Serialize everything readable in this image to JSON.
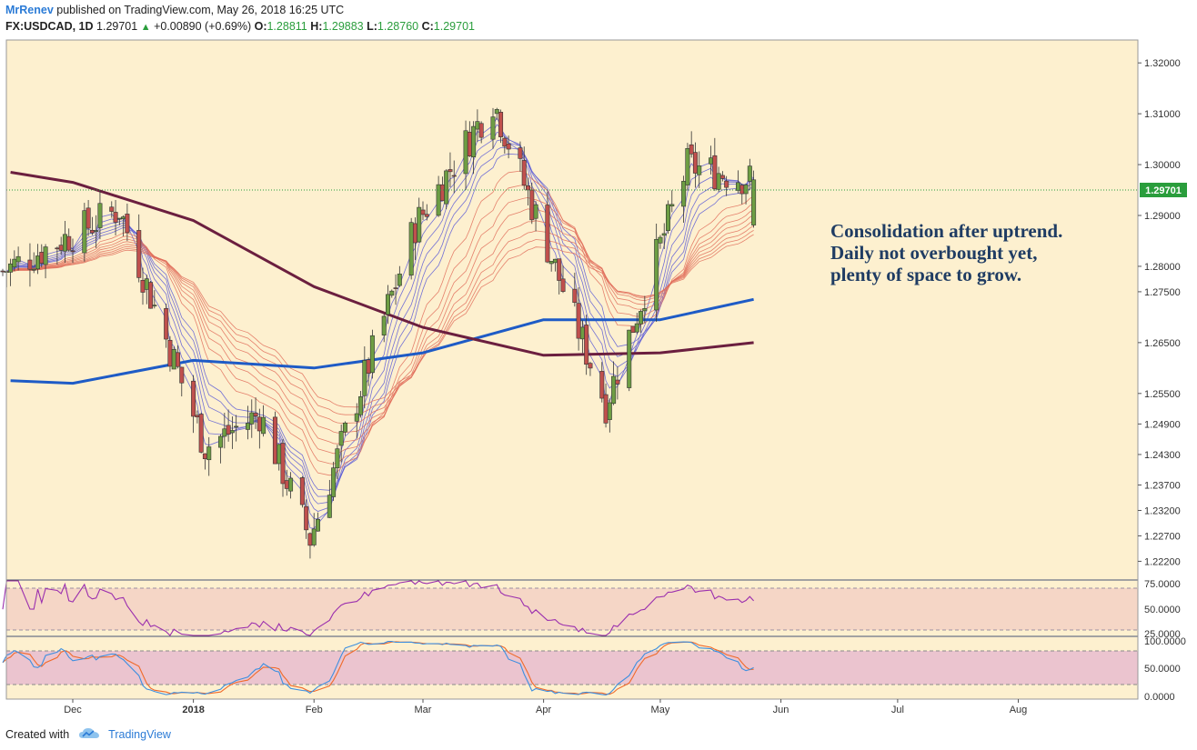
{
  "header": {
    "author": "MrRenev",
    "published": "published on TradingView.com, May 26, 2018 16:25 UTC",
    "symbol": "FX:USDCAD, 1D",
    "last": "1.29701",
    "change": "+0.00890 (+0.69%)",
    "o_label": "O:",
    "o": "1.28811",
    "h_label": "H:",
    "h": "1.29883",
    "l_label": "L:",
    "l": "1.28760",
    "c_label": "C:",
    "c": "1.29701"
  },
  "annotation": {
    "line1": "Consolidation after uptrend.",
    "line2": "Daily not overbought yet,",
    "line3": "plenty of space to grow."
  },
  "footer": {
    "created_with": "Created with",
    "brand": "TradingView"
  },
  "colors": {
    "background": "#fdf0cf",
    "up_candle": "#6e9e44",
    "down_candle": "#c0504d",
    "ma_fast": "#5b5bd6",
    "ma_slow": "#e06d5a",
    "sma_blue": "#1e5bc6",
    "sma_maroon": "#6b1f3f",
    "rsi_line": "#9b2fae",
    "stoch_k": "#3d8fe0",
    "stoch_d": "#f06a2a",
    "last_price_tag": "#2a9d3c"
  },
  "chart_data": [
    {
      "type": "candlestick",
      "symbol": "FX:USDCAD",
      "timeframe": "1D",
      "price_ticks": [
        "1.32000",
        "1.31000",
        "1.30000",
        "1.29000",
        "1.28000",
        "1.27500",
        "1.26500",
        "1.25500",
        "1.24900",
        "1.24300",
        "1.23700",
        "1.23200",
        "1.22700",
        "1.22200"
      ],
      "x_ticks": [
        "Dec",
        "2018",
        "Feb",
        "Mar",
        "Apr",
        "May",
        "Jun",
        "Jul",
        "Aug"
      ],
      "last_price_label": "1.29701",
      "ylim": [
        1.2185,
        1.3245
      ],
      "key_points": [
        {
          "date": "2017-12-13",
          "price": 1.2912
        },
        {
          "date": "2018-01-04",
          "price": 1.2445
        },
        {
          "date": "2018-01-18",
          "price": 1.251
        },
        {
          "date": "2018-01-31",
          "price": 1.2264
        },
        {
          "date": "2018-02-27",
          "price": 1.288
        },
        {
          "date": "2018-03-19",
          "price": 1.3127
        },
        {
          "date": "2018-04-17",
          "price": 1.2529
        },
        {
          "date": "2018-05-08",
          "price": 1.2998
        },
        {
          "date": "2018-05-25",
          "price": 1.297
        }
      ],
      "overlays": [
        {
          "kind": "SMA (blue)",
          "points": [
            [
              "2017-11-15",
              1.2575
            ],
            [
              "2017-12-01",
              1.257
            ],
            [
              "2018-01-01",
              1.2615
            ],
            [
              "2018-02-01",
              1.26
            ],
            [
              "2018-03-01",
              1.263
            ],
            [
              "2018-04-01",
              1.2695
            ],
            [
              "2018-05-01",
              1.2695
            ],
            [
              "2018-05-25",
              1.2735
            ]
          ]
        },
        {
          "kind": "SMA (maroon)",
          "points": [
            [
              "2017-11-15",
              1.2985
            ],
            [
              "2017-12-01",
              1.2965
            ],
            [
              "2018-01-01",
              1.289
            ],
            [
              "2018-02-01",
              1.276
            ],
            [
              "2018-03-01",
              1.268
            ],
            [
              "2018-04-01",
              1.2625
            ],
            [
              "2018-05-01",
              1.263
            ],
            [
              "2018-05-25",
              1.265
            ]
          ]
        }
      ]
    },
    {
      "type": "line",
      "indicator": "RSI",
      "y_ticks": [
        "75.0000",
        "50.0000",
        "25.0000"
      ],
      "ylim": [
        25,
        77
      ],
      "band": [
        30,
        70
      ]
    },
    {
      "type": "line",
      "indicator": "Stochastic",
      "y_ticks": [
        "100.0000",
        "50.0000",
        "0.0000"
      ],
      "ylim": [
        -5,
        105
      ],
      "band": [
        20,
        80
      ]
    }
  ]
}
